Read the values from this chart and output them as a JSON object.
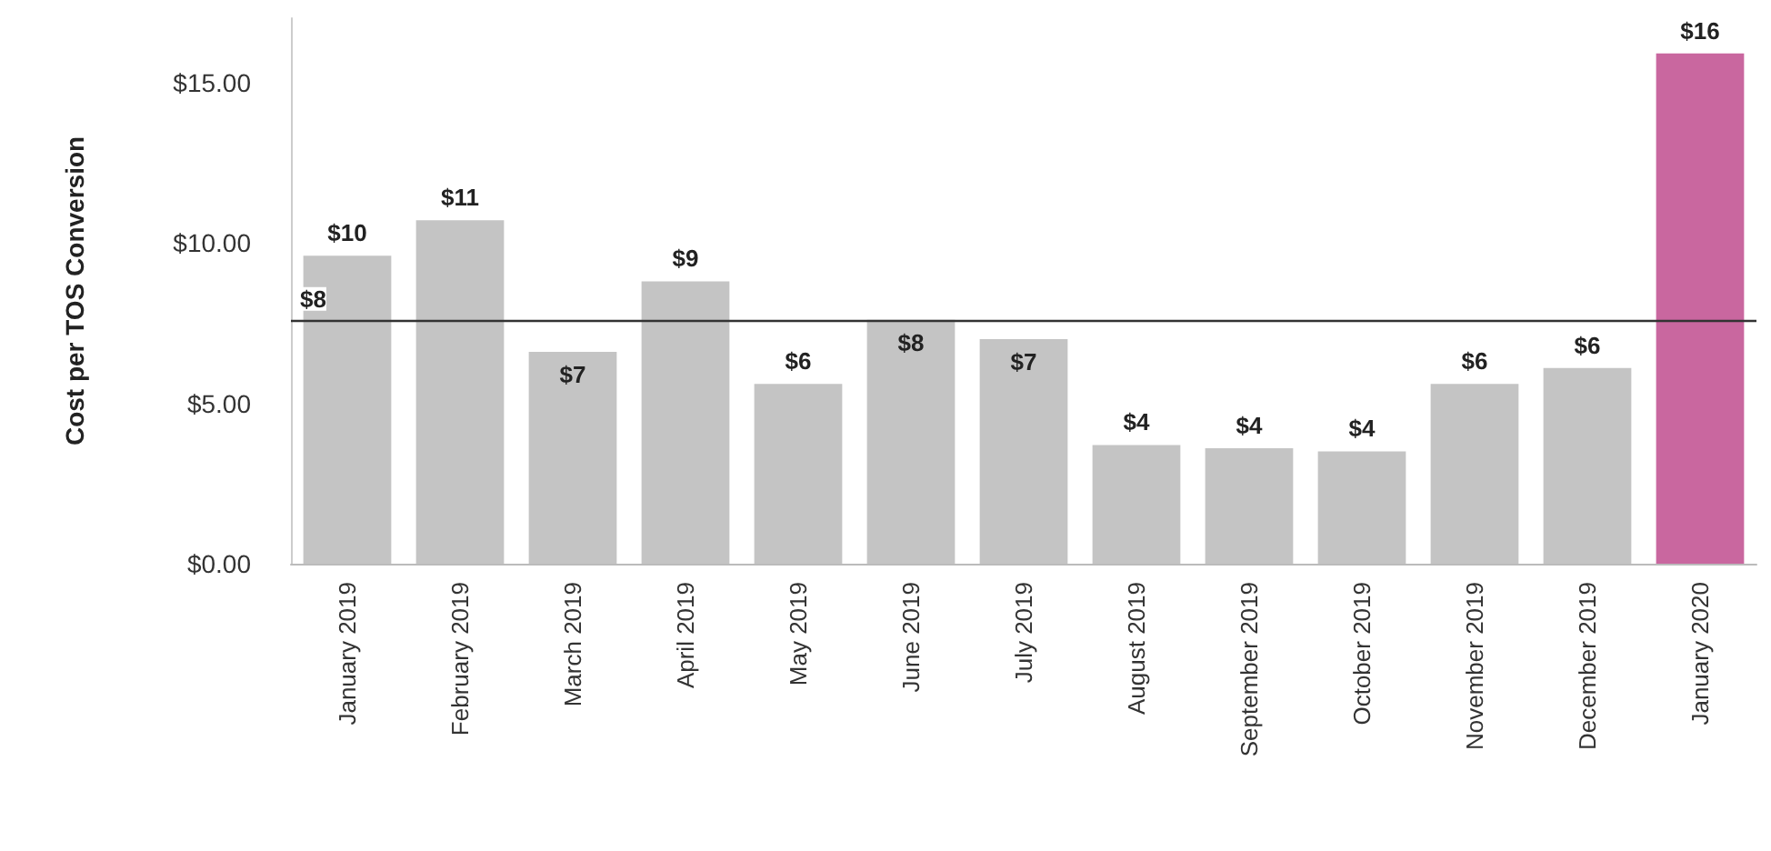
{
  "chart_data": {
    "type": "bar",
    "ylabel": "Cost per TOS Conversion",
    "categories": [
      "January 2019",
      "February 2019",
      "March 2019",
      "April 2019",
      "May 2019",
      "June 2019",
      "July 2019",
      "August 2019",
      "September 2019",
      "October 2019",
      "November 2019",
      "December 2019",
      "January 2020"
    ],
    "values": [
      9.6,
      10.7,
      6.6,
      8.8,
      5.6,
      7.6,
      7.0,
      3.7,
      3.6,
      3.5,
      5.6,
      6.1,
      15.9
    ],
    "value_labels": [
      "$10",
      "$11",
      "$7",
      "$9",
      "$6",
      "$8",
      "$7",
      "$4",
      "$4",
      "$4",
      "$6",
      "$6",
      "$16"
    ],
    "colors": [
      "#c4c4c4",
      "#c4c4c4",
      "#c4c4c4",
      "#c4c4c4",
      "#c4c4c4",
      "#c4c4c4",
      "#c4c4c4",
      "#c4c4c4",
      "#c4c4c4",
      "#c4c4c4",
      "#c4c4c4",
      "#c4c4c4",
      "#c9679f"
    ],
    "ylim": [
      0,
      17
    ],
    "yticks": [
      {
        "value": 0,
        "label": "$0.00"
      },
      {
        "value": 5,
        "label": "$5.00"
      },
      {
        "value": 10,
        "label": "$10.00"
      },
      {
        "value": 15,
        "label": "$15.00"
      }
    ],
    "ref_lines": [
      {
        "axis": "y",
        "value": 7.6,
        "label": "$8",
        "color": "#333333"
      }
    ],
    "grid": false
  }
}
